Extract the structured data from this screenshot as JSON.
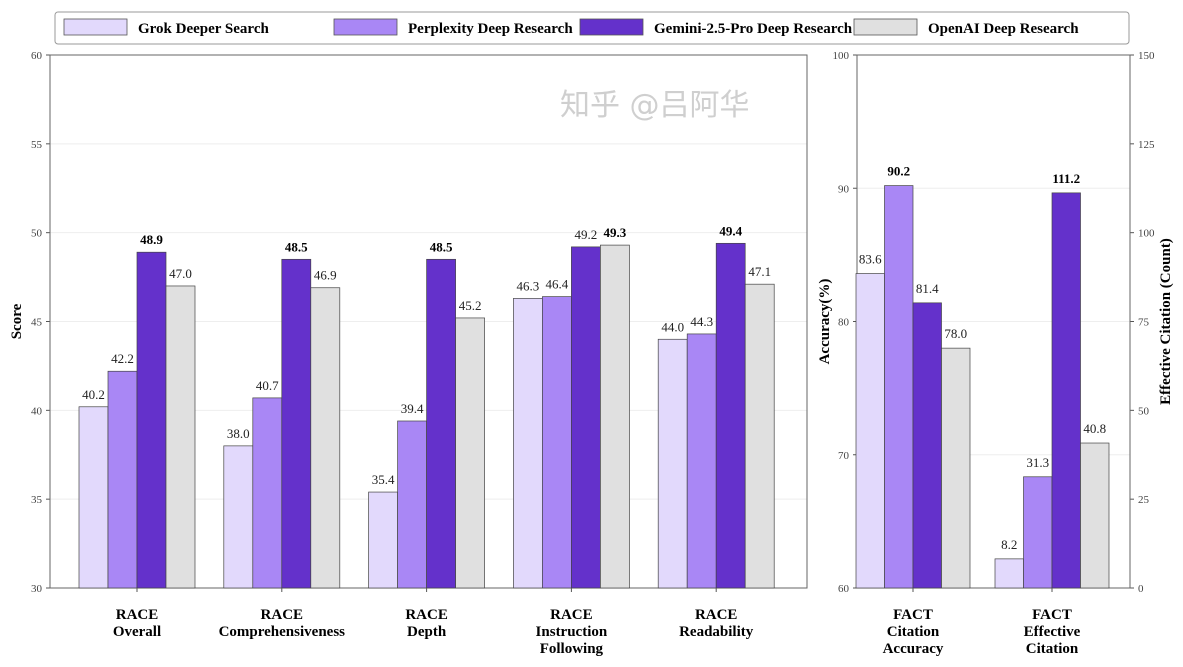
{
  "colors": {
    "Grok Deeper Search": "#e2d9fc",
    "Perplexity Deep Research": "#a987f5",
    "Gemini-2.5-Pro Deep Research": "#6431cb",
    "OpenAI Deep Research": "#e0e0e0"
  },
  "legend": [
    "Grok Deeper Search",
    "Perplexity Deep Research",
    "Gemini-2.5-Pro Deep Research",
    "OpenAI Deep Research"
  ],
  "watermark": "知乎 @吕阿华",
  "chart_data": [
    {
      "type": "bar",
      "title": "",
      "ylabel": "Score",
      "ylim": [
        30,
        60
      ],
      "yticks": [
        30,
        35,
        40,
        45,
        50,
        55,
        60
      ],
      "categories": [
        [
          "RACE",
          "Overall"
        ],
        [
          "RACE",
          "Comprehensiveness"
        ],
        [
          "RACE",
          "Depth"
        ],
        [
          "RACE",
          "Instruction",
          "Following"
        ],
        [
          "RACE",
          "Readability"
        ]
      ],
      "series": [
        {
          "name": "Grok Deeper Search",
          "values": [
            40.2,
            38.0,
            35.4,
            46.3,
            44.0
          ]
        },
        {
          "name": "Perplexity Deep Research",
          "values": [
            42.2,
            40.7,
            39.4,
            46.4,
            44.3
          ]
        },
        {
          "name": "Gemini-2.5-Pro Deep Research",
          "values": [
            48.9,
            48.5,
            48.5,
            49.2,
            49.4
          ]
        },
        {
          "name": "OpenAI Deep Research",
          "values": [
            47.0,
            46.9,
            45.2,
            49.3,
            47.1
          ]
        }
      ]
    },
    {
      "type": "bar",
      "ylabel": "Accuracy(%)",
      "ylim": [
        60,
        100
      ],
      "yticks": [
        60,
        70,
        80,
        90,
        100
      ],
      "y2label": "Effective Citation (Count)",
      "y2lim": [
        0,
        150
      ],
      "y2ticks": [
        0,
        25,
        50,
        75,
        100,
        125,
        150
      ],
      "categories": [
        [
          "FACT",
          "Citation",
          "Accuracy"
        ],
        [
          "FACT",
          "Effective",
          "Citation"
        ]
      ],
      "category_axis": [
        "left",
        "right"
      ],
      "series": [
        {
          "name": "Grok Deeper Search",
          "values": [
            83.6,
            8.2
          ]
        },
        {
          "name": "Perplexity Deep Research",
          "values": [
            90.2,
            31.3
          ]
        },
        {
          "name": "Gemini-2.5-Pro Deep Research",
          "values": [
            81.4,
            111.2
          ]
        },
        {
          "name": "OpenAI Deep Research",
          "values": [
            78.0,
            40.8
          ]
        }
      ]
    }
  ]
}
